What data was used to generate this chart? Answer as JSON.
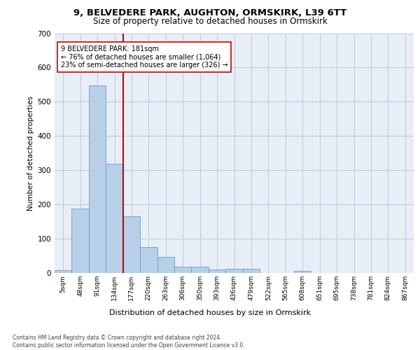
{
  "title1": "9, BELVEDERE PARK, AUGHTON, ORMSKIRK, L39 6TT",
  "title2": "Size of property relative to detached houses in Ormskirk",
  "xlabel": "Distribution of detached houses by size in Ormskirk",
  "ylabel": "Number of detached properties",
  "bin_labels": [
    "5sqm",
    "48sqm",
    "91sqm",
    "134sqm",
    "177sqm",
    "220sqm",
    "263sqm",
    "306sqm",
    "350sqm",
    "393sqm",
    "436sqm",
    "479sqm",
    "522sqm",
    "565sqm",
    "608sqm",
    "651sqm",
    "695sqm",
    "738sqm",
    "781sqm",
    "824sqm",
    "867sqm"
  ],
  "bar_values": [
    8,
    188,
    548,
    318,
    165,
    75,
    46,
    19,
    18,
    11,
    12,
    12,
    0,
    0,
    7,
    0,
    0,
    0,
    0,
    0,
    0
  ],
  "bar_color": "#b8cfe8",
  "bar_edge_color": "#6090c0",
  "vline_color": "#cc0000",
  "annotation_text": "9 BELVEDERE PARK: 181sqm\n← 76% of detached houses are smaller (1,064)\n23% of semi-detached houses are larger (326) →",
  "annotation_box_color": "#ffffff",
  "annotation_box_edge": "#cc0000",
  "ylim": [
    0,
    700
  ],
  "yticks": [
    0,
    100,
    200,
    300,
    400,
    500,
    600,
    700
  ],
  "footnote": "Contains HM Land Registry data © Crown copyright and database right 2024.\nContains public sector information licensed under the Open Government Licence v3.0.",
  "plot_bg_color": "#e8eef8"
}
